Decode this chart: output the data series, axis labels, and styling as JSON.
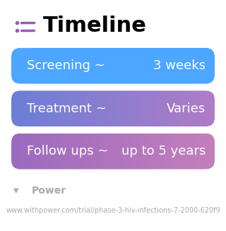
{
  "title": "Timeline",
  "background_color": "#ffffff",
  "title_color": "#000000",
  "title_fontsize": 22,
  "title_fontweight": "bold",
  "icon_color": "#9b59b6",
  "rows": [
    {
      "left_text": "Screening ~",
      "right_text": "3 weeks",
      "color_left": "#4da6ff",
      "color_right": "#4da6ff",
      "gradient": false
    },
    {
      "left_text": "Treatment ~",
      "right_text": "Varies",
      "color_left": "#6b7fd7",
      "color_right": "#b07cc6",
      "gradient": true
    },
    {
      "left_text": "Follow ups ~",
      "right_text": "up to 5 years",
      "color_left": "#9b6bbf",
      "color_right": "#c47fbc",
      "gradient": true
    }
  ],
  "row_text_color": "#ffffff",
  "row_fontsize": 13,
  "footer_text": "Power",
  "footer_url": "www.withpower.com/trial/phase-3-hiv-infections-7-2000-620f9",
  "footer_color": "#aaaaaa",
  "footer_fontsize": 7
}
